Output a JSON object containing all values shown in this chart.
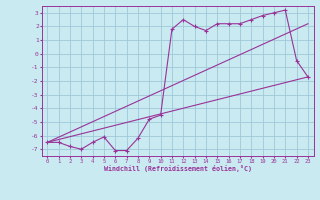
{
  "xlabel": "Windchill (Refroidissement éolien,°C)",
  "background_color": "#c8eaf0",
  "grid_color": "#a0c8d8",
  "line_color": "#993399",
  "xlim": [
    -0.5,
    23.5
  ],
  "ylim": [
    -7.5,
    3.5
  ],
  "yticks": [
    3,
    2,
    1,
    0,
    -1,
    -2,
    -3,
    -4,
    -5,
    -6,
    -7
  ],
  "xticks": [
    0,
    1,
    2,
    3,
    4,
    5,
    6,
    7,
    8,
    9,
    10,
    11,
    12,
    13,
    14,
    15,
    16,
    17,
    18,
    19,
    20,
    21,
    22,
    23
  ],
  "series1_x": [
    0,
    1,
    2,
    3,
    4,
    5,
    6,
    7,
    8,
    9,
    10,
    11,
    12,
    13,
    14,
    15,
    16,
    17,
    18,
    19,
    20,
    21,
    22,
    23
  ],
  "series1_y": [
    -6.5,
    -6.5,
    -6.8,
    -7.0,
    -6.5,
    -6.1,
    -7.1,
    -7.1,
    -6.2,
    -4.8,
    -4.5,
    1.8,
    2.5,
    2.0,
    1.7,
    2.2,
    2.2,
    2.2,
    2.5,
    2.8,
    3.0,
    3.2,
    -0.5,
    -1.7
  ],
  "series2_x": [
    0,
    23
  ],
  "series2_y": [
    -6.5,
    2.2
  ],
  "series3_x": [
    0,
    23
  ],
  "series3_y": [
    -6.5,
    -1.7
  ]
}
